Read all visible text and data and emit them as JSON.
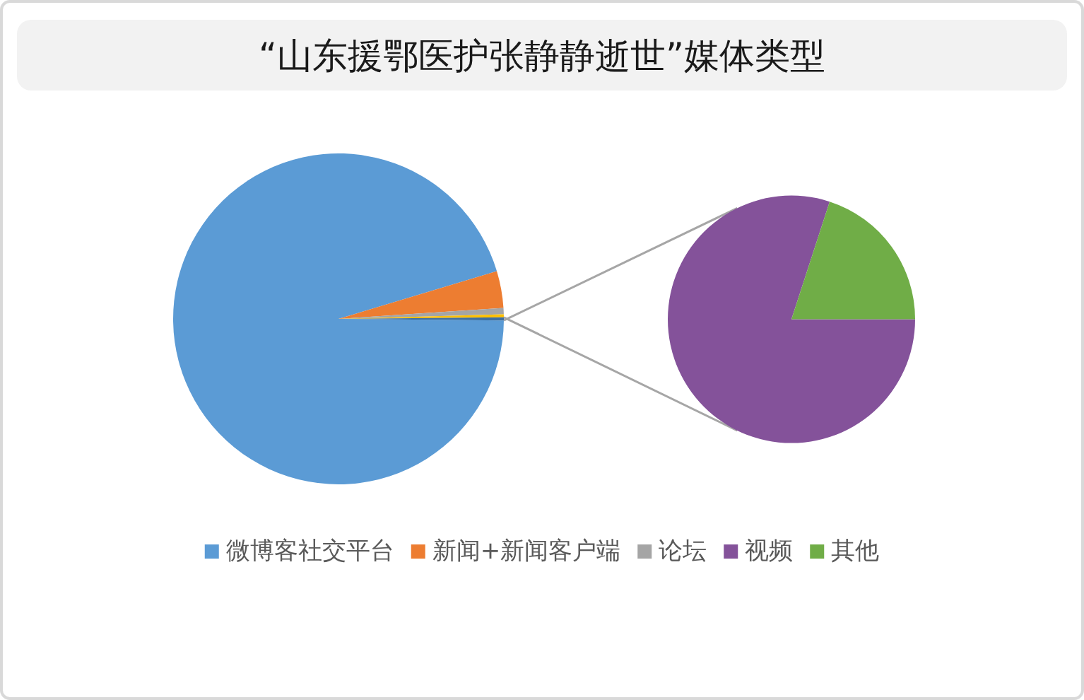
{
  "chart_data": [
    {
      "type": "pie",
      "title": "“山东援鄂医护张静静逝世”媒体类型",
      "categories": [
        "微博客社交平台",
        "新闻+新闻客户端",
        "论坛",
        null,
        null
      ],
      "values": [
        95.2,
        3.6,
        0.6,
        0.3,
        0.3
      ],
      "colors": [
        "#5b9bd5",
        "#ed7d31",
        "#a5a5a5",
        "#ffc000",
        "#3f6f9f"
      ],
      "legend": "bottom"
    },
    {
      "type": "pie",
      "categories": [
        "视频",
        "其他"
      ],
      "values": [
        80,
        20
      ],
      "colors": [
        "#84529a",
        "#70ad47"
      ],
      "legend": "bottom"
    }
  ]
}
